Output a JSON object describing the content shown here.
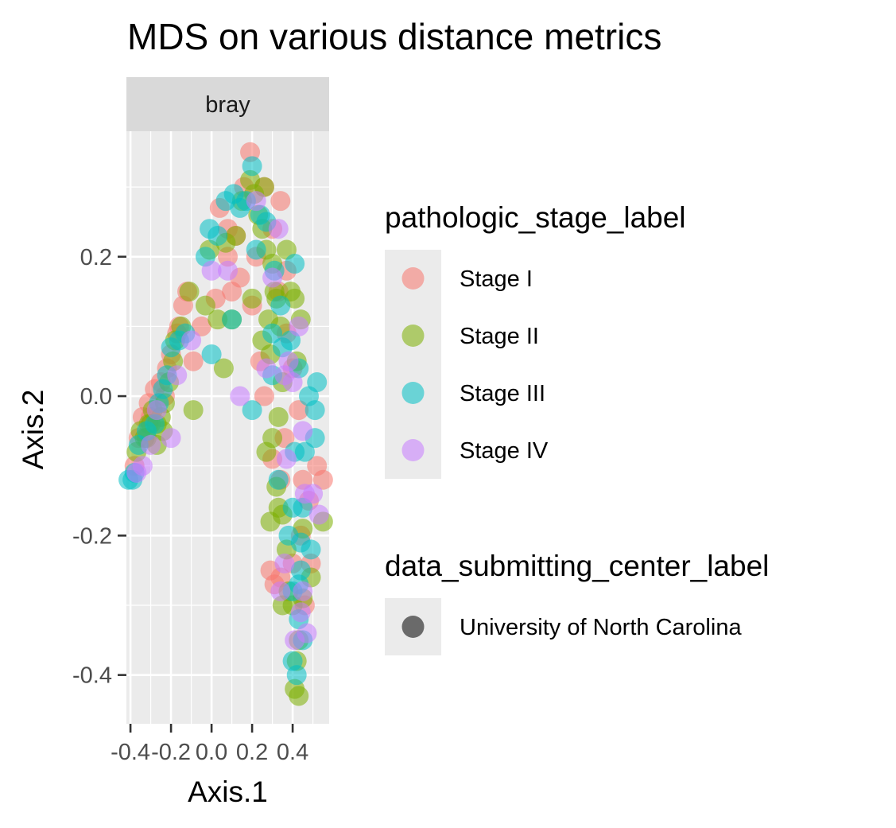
{
  "chart_data": {
    "type": "scatter",
    "title": "MDS on various distance metrics",
    "facet_label": "bray",
    "xlabel": "Axis.1",
    "ylabel": "Axis.2",
    "xlim": [
      -0.42,
      0.58
    ],
    "ylim": [
      -0.47,
      0.38
    ],
    "x_ticks": [
      -0.4,
      -0.2,
      0.0,
      0.2,
      0.4
    ],
    "x_tick_labels": [
      "-0.4",
      "-0.2",
      "0.0",
      "0.2",
      "0.4"
    ],
    "y_ticks": [
      -0.4,
      -0.2,
      0.0,
      0.2
    ],
    "y_tick_labels": [
      "-0.4",
      "-0.2",
      "0.0",
      "0.2"
    ],
    "grid": true,
    "point_opacity": 0.55,
    "legends": [
      {
        "title": "pathologic_stage_label",
        "entries": [
          {
            "label": "Stage I",
            "color": "#F8766D"
          },
          {
            "label": "Stage II",
            "color": "#7CAE00"
          },
          {
            "label": "Stage III",
            "color": "#00BFC4"
          },
          {
            "label": "Stage IV",
            "color": "#C77CFF"
          }
        ]
      },
      {
        "title": "data_submitting_center_label",
        "entries": [
          {
            "label": "University of North Carolina",
            "color": "#000000"
          }
        ]
      }
    ],
    "series": [
      {
        "name": "Stage I",
        "color": "#F8766D",
        "points": [
          [
            -0.38,
            -0.1
          ],
          [
            -0.36,
            -0.06
          ],
          [
            -0.34,
            -0.03
          ],
          [
            -0.31,
            -0.01
          ],
          [
            -0.28,
            0.01
          ],
          [
            -0.25,
            0.02
          ],
          [
            -0.22,
            0.04
          ],
          [
            -0.2,
            0.06
          ],
          [
            -0.17,
            0.09
          ],
          [
            -0.14,
            0.13
          ],
          [
            -0.12,
            0.15
          ],
          [
            -0.16,
            0.1
          ],
          [
            -0.23,
            0.0
          ],
          [
            -0.09,
            0.05
          ],
          [
            0.04,
            0.27
          ],
          [
            0.08,
            0.24
          ],
          [
            0.12,
            0.23
          ],
          [
            0.16,
            0.3
          ],
          [
            0.19,
            0.35
          ],
          [
            0.26,
            0.3
          ],
          [
            0.3,
            0.24
          ],
          [
            0.34,
            0.28
          ],
          [
            0.37,
            0.18
          ],
          [
            0.33,
            0.15
          ],
          [
            0.22,
            0.2
          ],
          [
            0.14,
            0.17
          ],
          [
            0.1,
            0.15
          ],
          [
            0.24,
            0.05
          ],
          [
            0.26,
            0.0
          ],
          [
            0.37,
            0.09
          ],
          [
            0.4,
            0.04
          ],
          [
            0.43,
            -0.02
          ],
          [
            0.36,
            -0.06
          ],
          [
            0.3,
            -0.09
          ],
          [
            0.34,
            -0.12
          ],
          [
            0.45,
            -0.12
          ],
          [
            0.52,
            -0.1
          ],
          [
            0.55,
            -0.12
          ],
          [
            0.48,
            -0.15
          ],
          [
            0.44,
            -0.2
          ],
          [
            0.4,
            -0.24
          ],
          [
            0.34,
            -0.26
          ],
          [
            0.29,
            -0.25
          ],
          [
            0.31,
            -0.27
          ],
          [
            0.46,
            -0.3
          ],
          [
            0.49,
            -0.24
          ],
          [
            0.08,
            0.2
          ],
          [
            0.02,
            0.14
          ],
          [
            -0.05,
            0.1
          ],
          [
            0.2,
            0.13
          ],
          [
            -0.3,
            -0.03
          ]
        ]
      },
      {
        "name": "Stage II",
        "color": "#7CAE00",
        "points": [
          [
            -0.37,
            -0.08
          ],
          [
            -0.35,
            -0.05
          ],
          [
            -0.33,
            -0.06
          ],
          [
            -0.31,
            -0.04
          ],
          [
            -0.29,
            -0.02
          ],
          [
            -0.27,
            -0.04
          ],
          [
            -0.25,
            -0.03
          ],
          [
            -0.23,
            -0.01
          ],
          [
            -0.21,
            0.02
          ],
          [
            -0.19,
            0.05
          ],
          [
            -0.18,
            0.08
          ],
          [
            -0.15,
            0.1
          ],
          [
            -0.11,
            0.15
          ],
          [
            -0.09,
            -0.02
          ],
          [
            -0.03,
            0.13
          ],
          [
            -0.01,
            0.21
          ],
          [
            0.03,
            0.11
          ],
          [
            0.07,
            0.22
          ],
          [
            0.1,
            0.11
          ],
          [
            0.12,
            0.23
          ],
          [
            0.15,
            0.28
          ],
          [
            0.19,
            0.31
          ],
          [
            0.21,
            0.29
          ],
          [
            0.23,
            0.26
          ],
          [
            0.26,
            0.3
          ],
          [
            0.27,
            0.21
          ],
          [
            0.3,
            0.19
          ],
          [
            0.31,
            0.15
          ],
          [
            0.28,
            0.11
          ],
          [
            0.25,
            0.08
          ],
          [
            0.29,
            0.06
          ],
          [
            0.32,
            0.14
          ],
          [
            0.34,
            0.1
          ],
          [
            0.37,
            0.21
          ],
          [
            0.39,
            0.15
          ],
          [
            0.41,
            0.14
          ],
          [
            0.42,
            0.05
          ],
          [
            0.44,
            0.11
          ],
          [
            0.35,
            0.02
          ],
          [
            0.33,
            -0.03
          ],
          [
            0.3,
            -0.06
          ],
          [
            0.27,
            -0.08
          ],
          [
            0.32,
            -0.13
          ],
          [
            0.35,
            -0.17
          ],
          [
            0.29,
            -0.18
          ],
          [
            0.37,
            -0.22
          ],
          [
            0.4,
            -0.3
          ],
          [
            0.43,
            -0.35
          ],
          [
            0.42,
            -0.38
          ],
          [
            0.41,
            -0.42
          ],
          [
            0.43,
            -0.43
          ],
          [
            0.45,
            -0.29
          ],
          [
            0.49,
            -0.26
          ],
          [
            0.55,
            -0.18
          ],
          [
            0.38,
            -0.28
          ],
          [
            0.2,
            0.14
          ],
          [
            0.06,
            0.04
          ],
          [
            -0.27,
            -0.07
          ],
          [
            -0.32,
            -0.06
          ],
          [
            0.35,
            -0.3
          ],
          [
            0.45,
            -0.19
          ],
          [
            0.33,
            -0.16
          ],
          [
            -0.24,
            -0.05
          ],
          [
            -0.3,
            -0.04
          ],
          [
            0.25,
            0.24
          ]
        ]
      },
      {
        "name": "Stage III",
        "color": "#00BFC4",
        "points": [
          [
            -0.39,
            -0.12
          ],
          [
            -0.38,
            -0.11
          ],
          [
            -0.36,
            -0.07
          ],
          [
            -0.32,
            -0.05
          ],
          [
            -0.28,
            -0.04
          ],
          [
            -0.26,
            -0.01
          ],
          [
            -0.24,
            0.01
          ],
          [
            -0.22,
            0.03
          ],
          [
            -0.2,
            0.07
          ],
          [
            -0.16,
            0.08
          ],
          [
            -0.13,
            0.09
          ],
          [
            -0.03,
            0.2
          ],
          [
            -0.01,
            0.24
          ],
          [
            0.03,
            0.23
          ],
          [
            0.07,
            0.28
          ],
          [
            0.11,
            0.29
          ],
          [
            0.14,
            0.27
          ],
          [
            0.17,
            0.28
          ],
          [
            0.2,
            0.33
          ],
          [
            0.22,
            0.21
          ],
          [
            0.24,
            0.26
          ],
          [
            0.27,
            0.25
          ],
          [
            0.31,
            0.18
          ],
          [
            0.34,
            0.13
          ],
          [
            0.1,
            0.11
          ],
          [
            0.2,
            -0.02
          ],
          [
            0.35,
            0.07
          ],
          [
            0.39,
            0.08
          ],
          [
            0.43,
            0.04
          ],
          [
            0.48,
            0.0
          ],
          [
            0.51,
            -0.02
          ],
          [
            0.51,
            -0.06
          ],
          [
            0.46,
            -0.08
          ],
          [
            0.41,
            -0.08
          ],
          [
            0.33,
            -0.12
          ],
          [
            0.4,
            -0.16
          ],
          [
            0.45,
            -0.16
          ],
          [
            0.38,
            -0.2
          ],
          [
            0.44,
            -0.21
          ],
          [
            0.49,
            -0.22
          ],
          [
            0.44,
            -0.25
          ],
          [
            0.43,
            -0.27
          ],
          [
            0.4,
            -0.28
          ],
          [
            0.43,
            -0.32
          ],
          [
            0.45,
            -0.35
          ],
          [
            0.4,
            -0.38
          ],
          [
            0.42,
            -0.4
          ],
          [
            0.52,
            0.02
          ],
          [
            0.41,
            0.19
          ],
          [
            0.3,
            0.09
          ],
          [
            -0.41,
            -0.12
          ],
          [
            0.0,
            0.06
          ],
          [
            0.3,
            0.03
          ]
        ]
      },
      {
        "name": "Stage IV",
        "color": "#C77CFF",
        "points": [
          [
            -0.37,
            -0.11
          ],
          [
            -0.34,
            -0.1
          ],
          [
            -0.3,
            -0.07
          ],
          [
            -0.27,
            -0.02
          ],
          [
            -0.2,
            -0.06
          ],
          [
            -0.17,
            0.03
          ],
          [
            -0.1,
            0.08
          ],
          [
            0.0,
            0.18
          ],
          [
            0.08,
            0.18
          ],
          [
            0.14,
            0.0
          ],
          [
            0.22,
            0.28
          ],
          [
            0.33,
            0.24
          ],
          [
            0.3,
            0.17
          ],
          [
            0.36,
            0.03
          ],
          [
            0.38,
            0.05
          ],
          [
            0.4,
            0.02
          ],
          [
            0.45,
            -0.05
          ],
          [
            0.37,
            -0.09
          ],
          [
            0.46,
            -0.14
          ],
          [
            0.5,
            -0.14
          ],
          [
            0.53,
            -0.17
          ],
          [
            0.36,
            -0.24
          ],
          [
            0.34,
            -0.28
          ],
          [
            0.45,
            -0.28
          ],
          [
            0.47,
            -0.34
          ],
          [
            0.44,
            -0.31
          ],
          [
            0.41,
            -0.35
          ],
          [
            0.27,
            0.04
          ],
          [
            0.43,
            0.1
          ]
        ]
      }
    ]
  }
}
